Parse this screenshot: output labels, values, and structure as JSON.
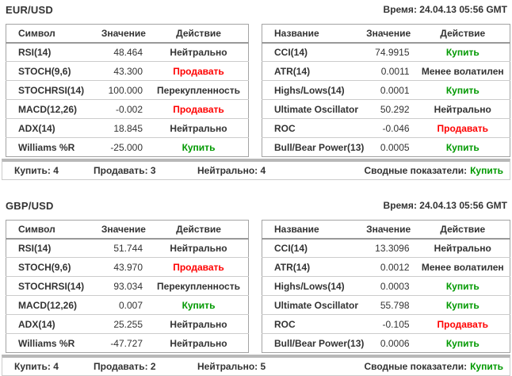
{
  "colors": {
    "buy": "#009900",
    "sell": "#ff0000",
    "text": "#333333"
  },
  "sections": [
    {
      "pair": "EUR/USD",
      "time_label": "Время: 24.04.13 05:56 GMT",
      "left_table": {
        "headers": [
          "Символ",
          "Значение",
          "Действие"
        ],
        "rows": [
          {
            "name": "RSI(14)",
            "value": "48.464",
            "action": "Нейтрально",
            "action_type": "neutral"
          },
          {
            "name": "STOCH(9,6)",
            "value": "43.300",
            "action": "Продавать",
            "action_type": "sell"
          },
          {
            "name": "STOCHRSI(14)",
            "value": "100.000",
            "action": "Перекупленность",
            "action_type": "neutral"
          },
          {
            "name": "MACD(12,26)",
            "value": "-0.002",
            "action": "Продавать",
            "action_type": "sell"
          },
          {
            "name": "ADX(14)",
            "value": "18.845",
            "action": "Нейтрально",
            "action_type": "neutral"
          },
          {
            "name": "Williams %R",
            "value": "-25.000",
            "action": "Купить",
            "action_type": "buy"
          }
        ]
      },
      "right_table": {
        "headers": [
          "Название",
          "Значение",
          "Действие"
        ],
        "rows": [
          {
            "name": "CCI(14)",
            "value": "74.9915",
            "action": "Купить",
            "action_type": "buy"
          },
          {
            "name": "ATR(14)",
            "value": "0.0011",
            "action": "Менее волатилен",
            "action_type": "neutral"
          },
          {
            "name": "Highs/Lows(14)",
            "value": "0.0001",
            "action": "Купить",
            "action_type": "buy"
          },
          {
            "name": "Ultimate Oscillator",
            "value": "50.292",
            "action": "Нейтрально",
            "action_type": "neutral"
          },
          {
            "name": "ROC",
            "value": "-0.046",
            "action": "Продавать",
            "action_type": "sell"
          },
          {
            "name": "Bull/Bear Power(13)",
            "value": "0.0005",
            "action": "Купить",
            "action_type": "buy"
          }
        ]
      },
      "summary": {
        "buy_label": "Купить: 4",
        "sell_label": "Продавать: 3",
        "neutral_label": "Нейтрально: 4",
        "overall_label": "Сводные показатели:",
        "overall_value": "Купить",
        "overall_type": "buy"
      }
    },
    {
      "pair": "GBP/USD",
      "time_label": "Время: 24.04.13 05:56 GMT",
      "left_table": {
        "headers": [
          "Символ",
          "Значение",
          "Действие"
        ],
        "rows": [
          {
            "name": "RSI(14)",
            "value": "51.744",
            "action": "Нейтрально",
            "action_type": "neutral"
          },
          {
            "name": "STOCH(9,6)",
            "value": "43.970",
            "action": "Продавать",
            "action_type": "sell"
          },
          {
            "name": "STOCHRSI(14)",
            "value": "93.034",
            "action": "Перекупленность",
            "action_type": "neutral"
          },
          {
            "name": "MACD(12,26)",
            "value": "0.007",
            "action": "Купить",
            "action_type": "buy"
          },
          {
            "name": "ADX(14)",
            "value": "25.255",
            "action": "Нейтрально",
            "action_type": "neutral"
          },
          {
            "name": "Williams %R",
            "value": "-47.727",
            "action": "Нейтрально",
            "action_type": "neutral"
          }
        ]
      },
      "right_table": {
        "headers": [
          "Название",
          "Значение",
          "Действие"
        ],
        "rows": [
          {
            "name": "CCI(14)",
            "value": "13.3096",
            "action": "Нейтрально",
            "action_type": "neutral"
          },
          {
            "name": "ATR(14)",
            "value": "0.0012",
            "action": "Менее волатилен",
            "action_type": "neutral"
          },
          {
            "name": "Highs/Lows(14)",
            "value": "0.0003",
            "action": "Купить",
            "action_type": "buy"
          },
          {
            "name": "Ultimate Oscillator",
            "value": "55.798",
            "action": "Купить",
            "action_type": "buy"
          },
          {
            "name": "ROC",
            "value": "-0.105",
            "action": "Продавать",
            "action_type": "sell"
          },
          {
            "name": "Bull/Bear Power(13)",
            "value": "0.0006",
            "action": "Купить",
            "action_type": "buy"
          }
        ]
      },
      "summary": {
        "buy_label": "Купить: 4",
        "sell_label": "Продавать: 2",
        "neutral_label": "Нейтрально: 5",
        "overall_label": "Сводные показатели:",
        "overall_value": "Купить",
        "overall_type": "buy"
      }
    }
  ]
}
